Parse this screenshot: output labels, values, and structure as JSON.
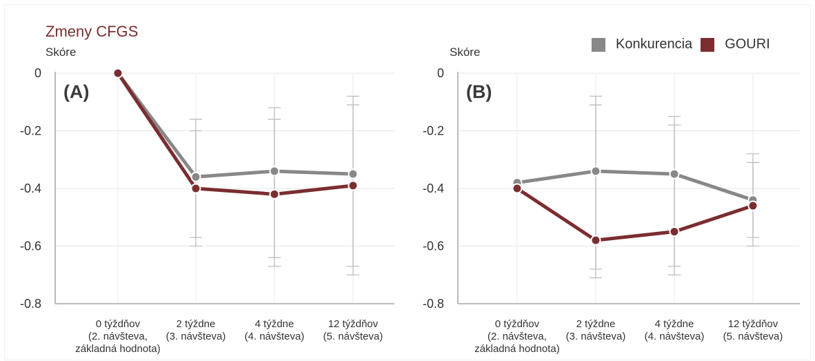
{
  "title": "Zmeny CFGS",
  "legend": [
    {
      "name": "Konkurencia",
      "color": "#888888"
    },
    {
      "name": "GOURI",
      "color": "#7b2d30"
    }
  ],
  "chart_data": [
    {
      "type": "line",
      "panel_label": "(A)",
      "ylabel": "Skóre",
      "ylim": [
        -0.8,
        0
      ],
      "yticks": [
        0,
        -0.2,
        -0.4,
        -0.6,
        -0.8
      ],
      "ytick_labels": [
        "0",
        "-0.2",
        "-0.4",
        "-0.6",
        "-0.8"
      ],
      "categories": [
        [
          "0 týždňov",
          "(2. návšteva,",
          "základná hodnota)"
        ],
        [
          "2 týždne",
          "(3. návšteva)"
        ],
        [
          "4 týždne",
          "(4. návšteva)"
        ],
        [
          "12 týždňov",
          "(5. návšteva)"
        ]
      ],
      "grid": true,
      "series": [
        {
          "name": "Konkurencia",
          "color": "#888888",
          "values": [
            0,
            -0.36,
            -0.34,
            -0.35
          ],
          "error": [
            null,
            [
              -0.57,
              -0.16
            ],
            [
              -0.64,
              -0.12
            ],
            [
              -0.67,
              -0.08
            ]
          ]
        },
        {
          "name": "GOURI",
          "color": "#7b2d30",
          "values": [
            0,
            -0.4,
            -0.42,
            -0.39
          ],
          "error": [
            null,
            [
              -0.6,
              -0.2
            ],
            [
              -0.67,
              -0.16
            ],
            [
              -0.7,
              -0.11
            ]
          ]
        }
      ]
    },
    {
      "type": "line",
      "panel_label": "(B)",
      "ylabel": "Skóre",
      "ylim": [
        -0.8,
        0
      ],
      "yticks": [
        0,
        -0.2,
        -0.4,
        -0.6,
        -0.8
      ],
      "ytick_labels": [
        "0",
        "-0.2",
        "-0.4",
        "-0.6",
        "-0.8"
      ],
      "categories": [
        [
          "0 týždňov",
          "(2. návšteva,",
          "základná hodnota)"
        ],
        [
          "2 týždne",
          "(3. návšteva)"
        ],
        [
          "4 týždne",
          "(4. návšteva)"
        ],
        [
          "12 týždňov",
          "(5. návšteva)"
        ]
      ],
      "grid": true,
      "series": [
        {
          "name": "Konkurencia",
          "color": "#888888",
          "values": [
            -0.38,
            -0.34,
            -0.35,
            -0.44
          ],
          "error": [
            null,
            [
              -0.68,
              -0.08
            ],
            [
              -0.67,
              -0.15
            ],
            [
              -0.57,
              -0.28
            ]
          ]
        },
        {
          "name": "GOURI",
          "color": "#7b2d30",
          "values": [
            -0.4,
            -0.58,
            -0.55,
            -0.46
          ],
          "error": [
            null,
            [
              -0.71,
              -0.11
            ],
            [
              -0.7,
              -0.18
            ],
            [
              -0.6,
              -0.31
            ]
          ]
        }
      ]
    }
  ]
}
